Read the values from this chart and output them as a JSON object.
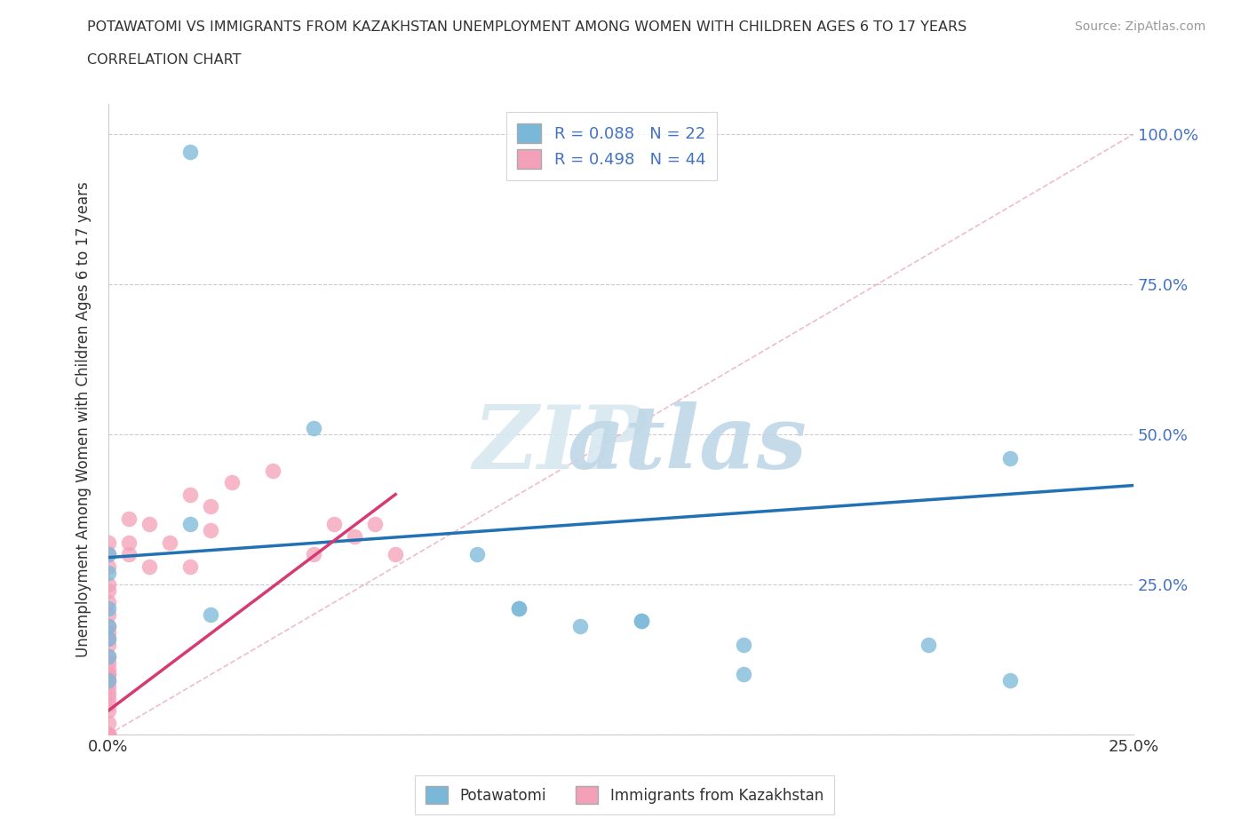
{
  "title_line1": "POTAWATOMI VS IMMIGRANTS FROM KAZAKHSTAN UNEMPLOYMENT AMONG WOMEN WITH CHILDREN AGES 6 TO 17 YEARS",
  "title_line2": "CORRELATION CHART",
  "source_text": "Source: ZipAtlas.com",
  "ylabel": "Unemployment Among Women with Children Ages 6 to 17 years",
  "xlim": [
    0.0,
    0.25
  ],
  "ylim": [
    0.0,
    1.05
  ],
  "xtick_positions": [
    0.0,
    0.05,
    0.1,
    0.15,
    0.2,
    0.25
  ],
  "xticklabels": [
    "0.0%",
    "",
    "",
    "",
    "",
    "25.0%"
  ],
  "ytick_positions": [
    0.0,
    0.25,
    0.5,
    0.75,
    1.0
  ],
  "yticklabels_right": [
    "",
    "25.0%",
    "50.0%",
    "75.0%",
    "100.0%"
  ],
  "legend_r1": "R = 0.088",
  "legend_n1": "N = 22",
  "legend_r2": "R = 0.498",
  "legend_n2": "N = 44",
  "color_potawatomi": "#7ab8d9",
  "color_kazakhstan": "#f4a0b8",
  "trendline_color_potawatomi": "#2171b5",
  "trendline_color_kazakhstan": "#d63a72",
  "refline_color": "#e8a0b8",
  "grid_color": "#cccccc",
  "bg_color": "#ffffff",
  "potawatomi_x": [
    0.02,
    0.0,
    0.0,
    0.0,
    0.0,
    0.0,
    0.0,
    0.0,
    0.02,
    0.025,
    0.05,
    0.09,
    0.1,
    0.1,
    0.115,
    0.13,
    0.13,
    0.155,
    0.155,
    0.2,
    0.22,
    0.22
  ],
  "potawatomi_y": [
    0.97,
    0.3,
    0.27,
    0.21,
    0.18,
    0.16,
    0.13,
    0.09,
    0.35,
    0.2,
    0.51,
    0.3,
    0.21,
    0.21,
    0.18,
    0.19,
    0.19,
    0.15,
    0.1,
    0.15,
    0.46,
    0.09
  ],
  "kazakhstan_x": [
    0.0,
    0.0,
    0.0,
    0.0,
    0.0,
    0.0,
    0.0,
    0.0,
    0.0,
    0.0,
    0.0,
    0.0,
    0.0,
    0.0,
    0.0,
    0.0,
    0.0,
    0.0,
    0.0,
    0.0,
    0.005,
    0.005,
    0.005,
    0.01,
    0.01,
    0.015,
    0.02,
    0.02,
    0.025,
    0.025,
    0.03,
    0.04,
    0.05,
    0.055,
    0.06,
    0.065,
    0.07,
    0.0,
    0.0,
    0.0,
    0.0,
    0.0,
    0.0,
    0.0
  ],
  "kazakhstan_y": [
    0.0,
    0.0,
    0.0,
    0.0,
    0.04,
    0.06,
    0.07,
    0.08,
    0.09,
    0.1,
    0.11,
    0.12,
    0.13,
    0.15,
    0.16,
    0.18,
    0.2,
    0.22,
    0.24,
    0.32,
    0.3,
    0.32,
    0.36,
    0.28,
    0.35,
    0.32,
    0.28,
    0.4,
    0.34,
    0.38,
    0.42,
    0.44,
    0.3,
    0.35,
    0.33,
    0.35,
    0.3,
    0.3,
    0.28,
    0.25,
    0.17,
    0.1,
    0.05,
    0.02
  ],
  "trend_pot_x0": 0.0,
  "trend_pot_x1": 0.25,
  "trend_pot_y0": 0.295,
  "trend_pot_y1": 0.415,
  "trend_kaz_x0": 0.0,
  "trend_kaz_x1": 0.07,
  "trend_kaz_y0": 0.04,
  "trend_kaz_y1": 0.4,
  "refline_x0": 0.0,
  "refline_x1": 0.25,
  "refline_y0": 0.0,
  "refline_y1": 1.0
}
